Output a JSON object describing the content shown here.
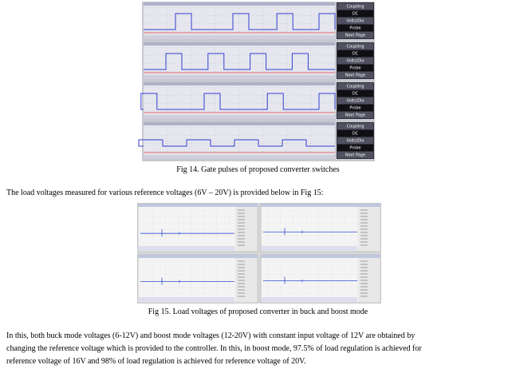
{
  "figures": [
    {
      "caption": "Fig 14. Gate pulses of proposed converter switches",
      "scope_menu": [
        "Coupling",
        "DC",
        "Volts/Div",
        "Probe",
        "Next Page"
      ]
    },
    {
      "caption": "Fig 15. Load voltages of proposed converter in buck and boost mode"
    }
  ],
  "paragraphs": [
    {
      "lines": [
        "The load voltages measured for various reference voltages (6V – 20V) is provided below in Fig 15:"
      ]
    },
    {
      "lines": [
        "In this, both buck mode voltages (6-12V) and boost mode voltages (12-20V) with constant input voltage of 12V are obtained by",
        "changing the reference voltage which is provided to the controller. In this, in boost mode, 97.5% of load regulation is achieved for",
        "reference voltage of 16V and 98% of load regulation is achieved for reference voltage of 20V."
      ]
    }
  ]
}
